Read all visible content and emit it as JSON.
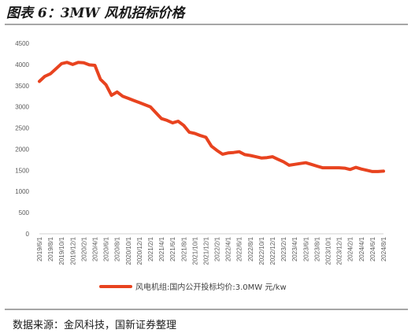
{
  "figure_title": "图表 6：3MW 风机招标价格",
  "source": "数据来源：金风科技，国新证券整理",
  "chart_data": {
    "type": "line",
    "title": "",
    "xlabel": "",
    "ylabel": "",
    "ylim": [
      0,
      4500
    ],
    "y_ticks": [
      0,
      500,
      1000,
      1500,
      2000,
      2500,
      3000,
      3500,
      4000,
      4500
    ],
    "grid": false,
    "legend_position": "bottom",
    "line_color": "#e8431f",
    "x": [
      "2019/6/1",
      "2019/7/1",
      "2019/8/1",
      "2019/9/1",
      "2019/10/1",
      "2019/11/1",
      "2019/12/1",
      "2020/1/1",
      "2020/2/1",
      "2020/3/1",
      "2020/4/1",
      "2020/5/1",
      "2020/6/1",
      "2020/7/1",
      "2020/8/1",
      "2020/9/1",
      "2020/10/1",
      "2020/11/1",
      "2020/12/1",
      "2021/1/1",
      "2021/2/1",
      "2021/3/1",
      "2021/4/1",
      "2021/5/1",
      "2021/6/1",
      "2021/7/1",
      "2021/8/1",
      "2021/9/1",
      "2021/10/1",
      "2021/11/1",
      "2021/12/1",
      "2022/1/1",
      "2022/2/1",
      "2022/3/1",
      "2022/4/1",
      "2022/5/1",
      "2022/6/1",
      "2022/7/1",
      "2022/8/1",
      "2022/9/1",
      "2022/10/1",
      "2022/11/1",
      "2022/12/1",
      "2023/1/1",
      "2023/2/1",
      "2023/3/1",
      "2023/4/1",
      "2023/5/1",
      "2023/6/1",
      "2023/7/1",
      "2023/8/1",
      "2023/9/1",
      "2023/10/1",
      "2023/11/1",
      "2023/12/1",
      "2024/1/1",
      "2024/2/1",
      "2024/3/1",
      "2024/4/1",
      "2024/5/1",
      "2024/6/1",
      "2024/7/1",
      "2024/8/1"
    ],
    "x_tick_labels": [
      "2019/6/1",
      "2019/8/1",
      "2019/10/1",
      "2019/12/1",
      "2020/2/1",
      "2020/4/1",
      "2020/6/1",
      "2020/8/1",
      "2020/10/1",
      "2020/12/1",
      "2021/2/1",
      "2021/4/1",
      "2021/6/1",
      "2021/8/1",
      "2021/10/1",
      "2021/12/1",
      "2022/2/1",
      "2022/4/1",
      "2022/6/1",
      "2022/8/1",
      "2022/10/1",
      "2022/12/1",
      "2023/2/1",
      "2023/4/1",
      "2023/6/1",
      "2023/8/1",
      "2023/10/1",
      "2023/12/1",
      "2024/2/1",
      "2024/4/1",
      "2024/6/1",
      "2024/8/1"
    ],
    "series": [
      {
        "name": "风电机组:国内公开投标均价:3.0MW 元/kw",
        "values": [
          3600,
          3720,
          3780,
          3900,
          4020,
          4050,
          4000,
          4050,
          4040,
          3990,
          3980,
          3650,
          3520,
          3270,
          3350,
          3250,
          3200,
          3150,
          3100,
          3050,
          3000,
          2860,
          2720,
          2680,
          2620,
          2660,
          2560,
          2400,
          2370,
          2320,
          2280,
          2070,
          1970,
          1880,
          1910,
          1920,
          1940,
          1870,
          1850,
          1820,
          1790,
          1800,
          1820,
          1760,
          1700,
          1620,
          1640,
          1660,
          1680,
          1640,
          1600,
          1560,
          1560,
          1560,
          1560,
          1550,
          1520,
          1570,
          1530,
          1500,
          1470,
          1470,
          1480
        ]
      }
    ]
  }
}
